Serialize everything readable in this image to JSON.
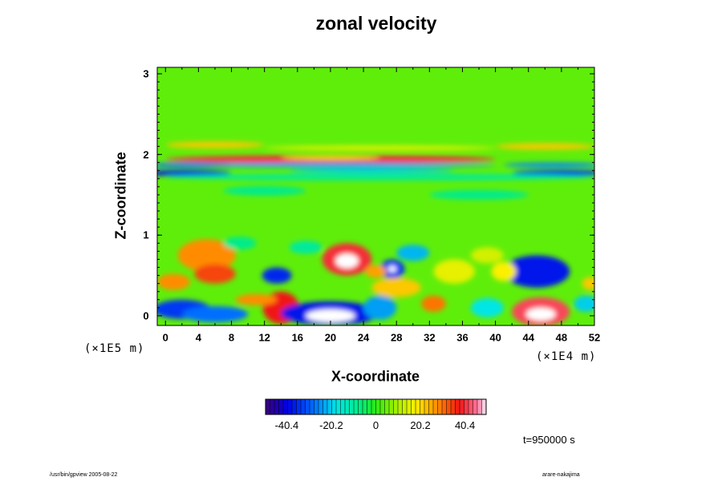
{
  "chart_data": {
    "type": "heatmap",
    "title": "zonal velocity",
    "xlabel": "X-coordinate",
    "ylabel": "Z-coordinate",
    "x_unit": "(×1E4 m)",
    "y_unit": "(×1E5 m)",
    "x_ticks": [
      "0",
      "4",
      "8",
      "12",
      "16",
      "20",
      "24",
      "28",
      "32",
      "36",
      "40",
      "44",
      "48",
      "52"
    ],
    "y_ticks": [
      "3",
      "2",
      "1",
      "0"
    ],
    "xlim": [
      -1,
      52
    ],
    "ylim": [
      -0.12,
      3.08
    ],
    "colorbar": {
      "ticks": [
        "-40.4",
        "-20.2",
        "0",
        "20.2",
        "40.4"
      ],
      "range": [
        -50,
        50
      ]
    },
    "time_label": "t=950000 s",
    "features": [
      {
        "x": 20,
        "z": 1.94,
        "rx": 20,
        "rz": 0.05,
        "value": 40
      },
      {
        "x": 20,
        "z": 1.96,
        "rx": 6,
        "rz": 0.025,
        "value": 20
      },
      {
        "x": 6,
        "z": 2.12,
        "rx": 6,
        "rz": 0.04,
        "value": 22
      },
      {
        "x": 46,
        "z": 2.1,
        "rx": 6,
        "rz": 0.04,
        "value": 22
      },
      {
        "x": 26,
        "z": 2.08,
        "rx": 14,
        "rz": 0.03,
        "value": 16
      },
      {
        "x": 20,
        "z": 1.87,
        "rx": 20,
        "rz": 0.03,
        "value": -24
      },
      {
        "x": 3,
        "z": 1.87,
        "rx": 5,
        "rz": 0.03,
        "value": -28
      },
      {
        "x": 47,
        "z": 1.87,
        "rx": 6,
        "rz": 0.03,
        "value": -26
      },
      {
        "x": 2,
        "z": 1.77,
        "rx": 6,
        "rz": 0.035,
        "value": -38
      },
      {
        "x": 48,
        "z": 1.77,
        "rx": 6,
        "rz": 0.035,
        "value": -36
      },
      {
        "x": 25,
        "z": 1.8,
        "rx": 10,
        "rz": 0.03,
        "value": -20
      },
      {
        "x": 26,
        "z": 1.72,
        "rx": 26,
        "rz": 0.04,
        "value": -10
      },
      {
        "x": 12,
        "z": 1.55,
        "rx": 5,
        "rz": 0.06,
        "value": -8
      },
      {
        "x": 38,
        "z": 1.5,
        "rx": 6,
        "rz": 0.06,
        "value": -8
      },
      {
        "x": 5,
        "z": 0.75,
        "rx": 3.5,
        "rz": 0.2,
        "value": 28
      },
      {
        "x": 6,
        "z": 0.52,
        "rx": 2.5,
        "rz": 0.12,
        "value": 34
      },
      {
        "x": 1,
        "z": 0.42,
        "rx": 2,
        "rz": 0.1,
        "value": 28
      },
      {
        "x": 2,
        "z": 0.08,
        "rx": 3.5,
        "rz": 0.12,
        "value": -34
      },
      {
        "x": 6,
        "z": 0.02,
        "rx": 4,
        "rz": 0.1,
        "value": -28
      },
      {
        "x": 13.5,
        "z": 0.5,
        "rx": 1.8,
        "rz": 0.1,
        "value": -36
      },
      {
        "x": 14,
        "z": 0.1,
        "rx": 2.2,
        "rz": 0.2,
        "value": 38
      },
      {
        "x": 11,
        "z": 0.2,
        "rx": 2.5,
        "rz": 0.07,
        "value": 28
      },
      {
        "x": 22,
        "z": 0.7,
        "rx": 3,
        "rz": 0.2,
        "value": 40
      },
      {
        "x": 22,
        "z": 0.68,
        "rx": 1.4,
        "rz": 0.09,
        "value": 55
      },
      {
        "x": 20,
        "z": 0.03,
        "rx": 6,
        "rz": 0.15,
        "value": -38
      },
      {
        "x": 20,
        "z": 0.0,
        "rx": 3,
        "rz": 0.08,
        "value": -60
      },
      {
        "x": 27.5,
        "z": 0.58,
        "rx": 1.5,
        "rz": 0.12,
        "value": -34
      },
      {
        "x": 27.5,
        "z": 0.58,
        "rx": 0.5,
        "rz": 0.04,
        "value": 55
      },
      {
        "x": 25.5,
        "z": 0.55,
        "rx": 1.3,
        "rz": 0.08,
        "value": 26
      },
      {
        "x": 28,
        "z": 0.35,
        "rx": 3,
        "rz": 0.12,
        "value": 22
      },
      {
        "x": 32.5,
        "z": 0.15,
        "rx": 1.5,
        "rz": 0.1,
        "value": 30
      },
      {
        "x": 30,
        "z": 0.78,
        "rx": 2,
        "rz": 0.1,
        "value": -22
      },
      {
        "x": 26,
        "z": 0.1,
        "rx": 2,
        "rz": 0.15,
        "value": -24
      },
      {
        "x": 35,
        "z": 0.55,
        "rx": 2.5,
        "rz": 0.15,
        "value": 16
      },
      {
        "x": 39,
        "z": 0.75,
        "rx": 2,
        "rz": 0.1,
        "value": 14
      },
      {
        "x": 45,
        "z": 0.55,
        "rx": 4,
        "rz": 0.2,
        "value": -38
      },
      {
        "x": 45.5,
        "z": 0.05,
        "rx": 3.5,
        "rz": 0.18,
        "value": 42
      },
      {
        "x": 45.5,
        "z": 0.02,
        "rx": 1.8,
        "rz": 0.08,
        "value": 60
      },
      {
        "x": 41,
        "z": 0.55,
        "rx": 1.5,
        "rz": 0.12,
        "value": 18
      },
      {
        "x": 39,
        "z": 0.1,
        "rx": 2,
        "rz": 0.12,
        "value": -18
      },
      {
        "x": 51,
        "z": 0.15,
        "rx": 1.5,
        "rz": 0.1,
        "value": -20
      },
      {
        "x": 51.5,
        "z": 0.4,
        "rx": 1,
        "rz": 0.08,
        "value": 22
      },
      {
        "x": 17,
        "z": 0.85,
        "rx": 2,
        "rz": 0.08,
        "value": -10
      },
      {
        "x": 9,
        "z": 0.9,
        "rx": 2,
        "rz": 0.08,
        "value": -8
      }
    ]
  },
  "footer": {
    "left": "/usr/bin/gpview 2005-08-22",
    "right": "arare-nakajima"
  }
}
